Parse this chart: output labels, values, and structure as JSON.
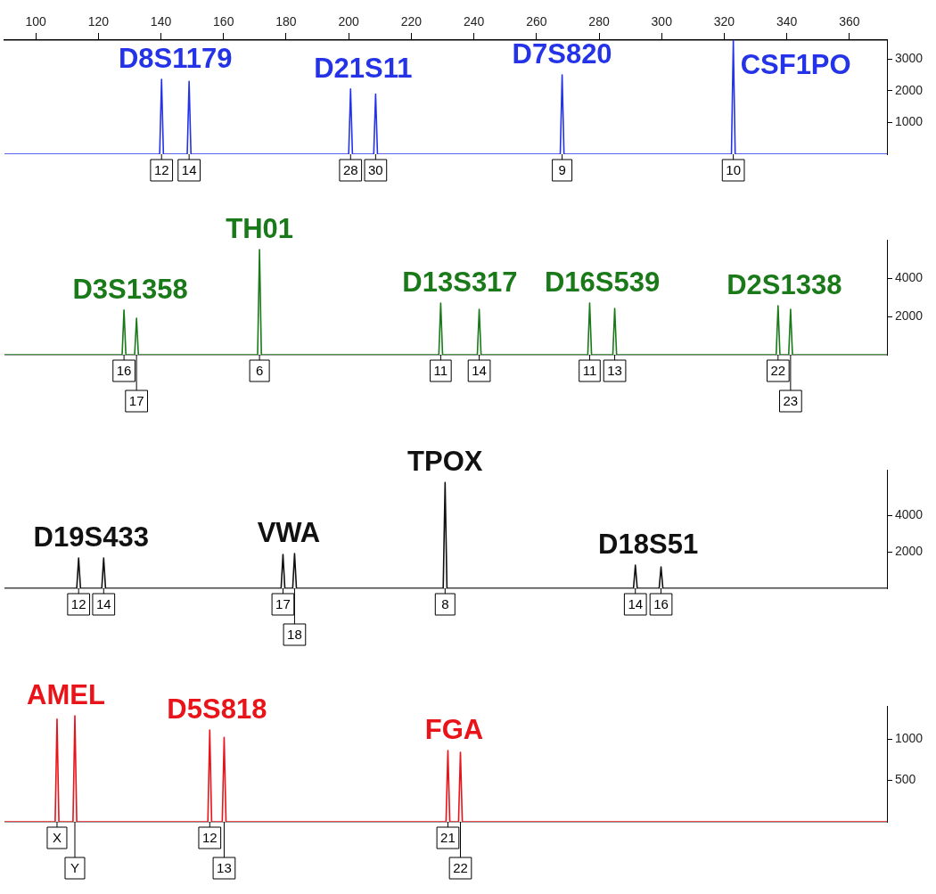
{
  "chart_data": [
    {
      "type": "line",
      "xlim": [
        90,
        372
      ],
      "xticks": [
        100,
        120,
        140,
        160,
        180,
        200,
        220,
        240,
        260,
        280,
        300,
        320,
        340,
        360
      ],
      "ylim": [
        0,
        3600
      ],
      "yticks": [
        1000,
        2000,
        3000
      ],
      "grid": false,
      "legend": false,
      "marker": "none",
      "series": [
        {
          "color": "#2433e8",
          "x": [
            90,
            139.6,
            140.2,
            140.8,
            148.4,
            149.0,
            149.6,
            200.0,
            200.6,
            201.2,
            208.0,
            208.6,
            209.2,
            267.6,
            268.2,
            268.8,
            322.3,
            322.9,
            323.5,
            372
          ],
          "values": [
            0,
            0,
            2360,
            0,
            0,
            2300,
            0,
            0,
            2060,
            0,
            0,
            1900,
            0,
            0,
            2500,
            0,
            0,
            3580,
            0,
            0
          ]
        }
      ],
      "annotations": [
        "D8S1179",
        "D21S11",
        "D7S820",
        "CSF1PO",
        {
          "text": "12",
          "x": 140.2,
          "y": 0
        },
        {
          "text": "14",
          "x": 149.0,
          "y": 0
        },
        {
          "text": "28",
          "x": 200.6,
          "y": 0
        },
        {
          "text": "30",
          "x": 208.6,
          "y": 0
        },
        {
          "text": "9",
          "x": 268.2,
          "y": 0
        },
        {
          "text": "10",
          "x": 322.9,
          "y": 0
        }
      ]
    },
    {
      "type": "line",
      "xlim": [
        90,
        372
      ],
      "ylim": [
        0,
        6000
      ],
      "yticks": [
        2000,
        4000
      ],
      "grid": false,
      "legend": false,
      "marker": "none",
      "tick_labels": "y",
      "series": [
        {
          "color": "#1a7a1a",
          "x": [
            90,
            127.6,
            128.2,
            128.8,
            131.6,
            132.2,
            132.8,
            170.9,
            171.5,
            172.1,
            228.8,
            229.4,
            230.0,
            241.1,
            241.7,
            242.3,
            276.4,
            277.0,
            277.6,
            284.4,
            285.0,
            285.6,
            336.6,
            337.2,
            337.8,
            340.6,
            341.2,
            341.8,
            372
          ],
          "values": [
            0,
            0,
            2330,
            0,
            0,
            1900,
            0,
            0,
            5490,
            0,
            0,
            2700,
            0,
            0,
            2370,
            0,
            0,
            2700,
            0,
            0,
            2420,
            0,
            0,
            2560,
            0,
            0,
            2370,
            0,
            0
          ]
        }
      ],
      "annotations": [
        "D3S1358",
        "TH01",
        "D13S317",
        "D16S539",
        "D2S1338",
        {
          "text": "16",
          "x": 128.2,
          "y": 0
        },
        {
          "text": "17",
          "x": 132.2,
          "y": 0
        },
        {
          "text": "6",
          "x": 171.5,
          "y": 0
        },
        {
          "text": "11",
          "x": 229.4,
          "y": 0
        },
        {
          "text": "14",
          "x": 241.7,
          "y": 0
        },
        {
          "text": "11",
          "x": 277.0,
          "y": 0
        },
        {
          "text": "13",
          "x": 285.0,
          "y": 0
        },
        {
          "text": "22",
          "x": 337.2,
          "y": 0
        },
        {
          "text": "23",
          "x": 341.2,
          "y": 0
        }
      ]
    },
    {
      "type": "line",
      "xlim": [
        90,
        372
      ],
      "ylim": [
        0,
        6500
      ],
      "yticks": [
        2000,
        4000
      ],
      "grid": false,
      "legend": false,
      "marker": "none",
      "tick_labels": "y",
      "series": [
        {
          "color": "#111111",
          "x": [
            90,
            113.1,
            113.7,
            114.3,
            121.1,
            121.7,
            122.3,
            178.4,
            179.0,
            179.6,
            182.1,
            182.7,
            183.3,
            230.2,
            230.8,
            231.4,
            291.0,
            291.6,
            292.2,
            299.2,
            299.8,
            300.4,
            372
          ],
          "values": [
            0,
            0,
            1660,
            0,
            0,
            1660,
            0,
            0,
            1850,
            0,
            0,
            1900,
            0,
            0,
            5800,
            0,
            0,
            1270,
            0,
            0,
            1170,
            0,
            0
          ]
        }
      ],
      "annotations": [
        "D19S433",
        "VWA",
        "TPOX",
        "D18S51",
        {
          "text": "12",
          "x": 113.7,
          "y": 0
        },
        {
          "text": "14",
          "x": 121.7,
          "y": 0
        },
        {
          "text": "17",
          "x": 179.0,
          "y": 0
        },
        {
          "text": "18",
          "x": 182.7,
          "y": 0
        },
        {
          "text": "8",
          "x": 230.8,
          "y": 0
        },
        {
          "text": "14",
          "x": 291.6,
          "y": 0
        },
        {
          "text": "16",
          "x": 299.8,
          "y": 0
        }
      ]
    },
    {
      "type": "line",
      "xlim": [
        90,
        372
      ],
      "ylim": [
        0,
        1400
      ],
      "yticks": [
        500,
        1000
      ],
      "grid": false,
      "legend": false,
      "marker": "none",
      "tick_labels": "y",
      "series": [
        {
          "color": "#e8141a",
          "x": [
            90,
            106.2,
            106.8,
            107.4,
            111.9,
            112.5,
            113.1,
            155.0,
            155.6,
            156.2,
            159.6,
            160.2,
            160.8,
            231.1,
            231.7,
            232.3,
            235.1,
            235.7,
            236.3,
            372
          ],
          "values": [
            0,
            0,
            1240,
            0,
            0,
            1280,
            0,
            0,
            1110,
            0,
            0,
            1020,
            0,
            0,
            860,
            0,
            0,
            840,
            0,
            0
          ]
        }
      ],
      "annotations": [
        "AMEL",
        "D5S818",
        "FGA",
        {
          "text": "X",
          "x": 106.8,
          "y": 0
        },
        {
          "text": "Y",
          "x": 112.5,
          "y": 0
        },
        {
          "text": "12",
          "x": 155.6,
          "y": 0
        },
        {
          "text": "13",
          "x": 160.2,
          "y": 0
        },
        {
          "text": "21",
          "x": 231.7,
          "y": 0
        },
        {
          "text": "22",
          "x": 235.7,
          "y": 0
        }
      ]
    }
  ]
}
